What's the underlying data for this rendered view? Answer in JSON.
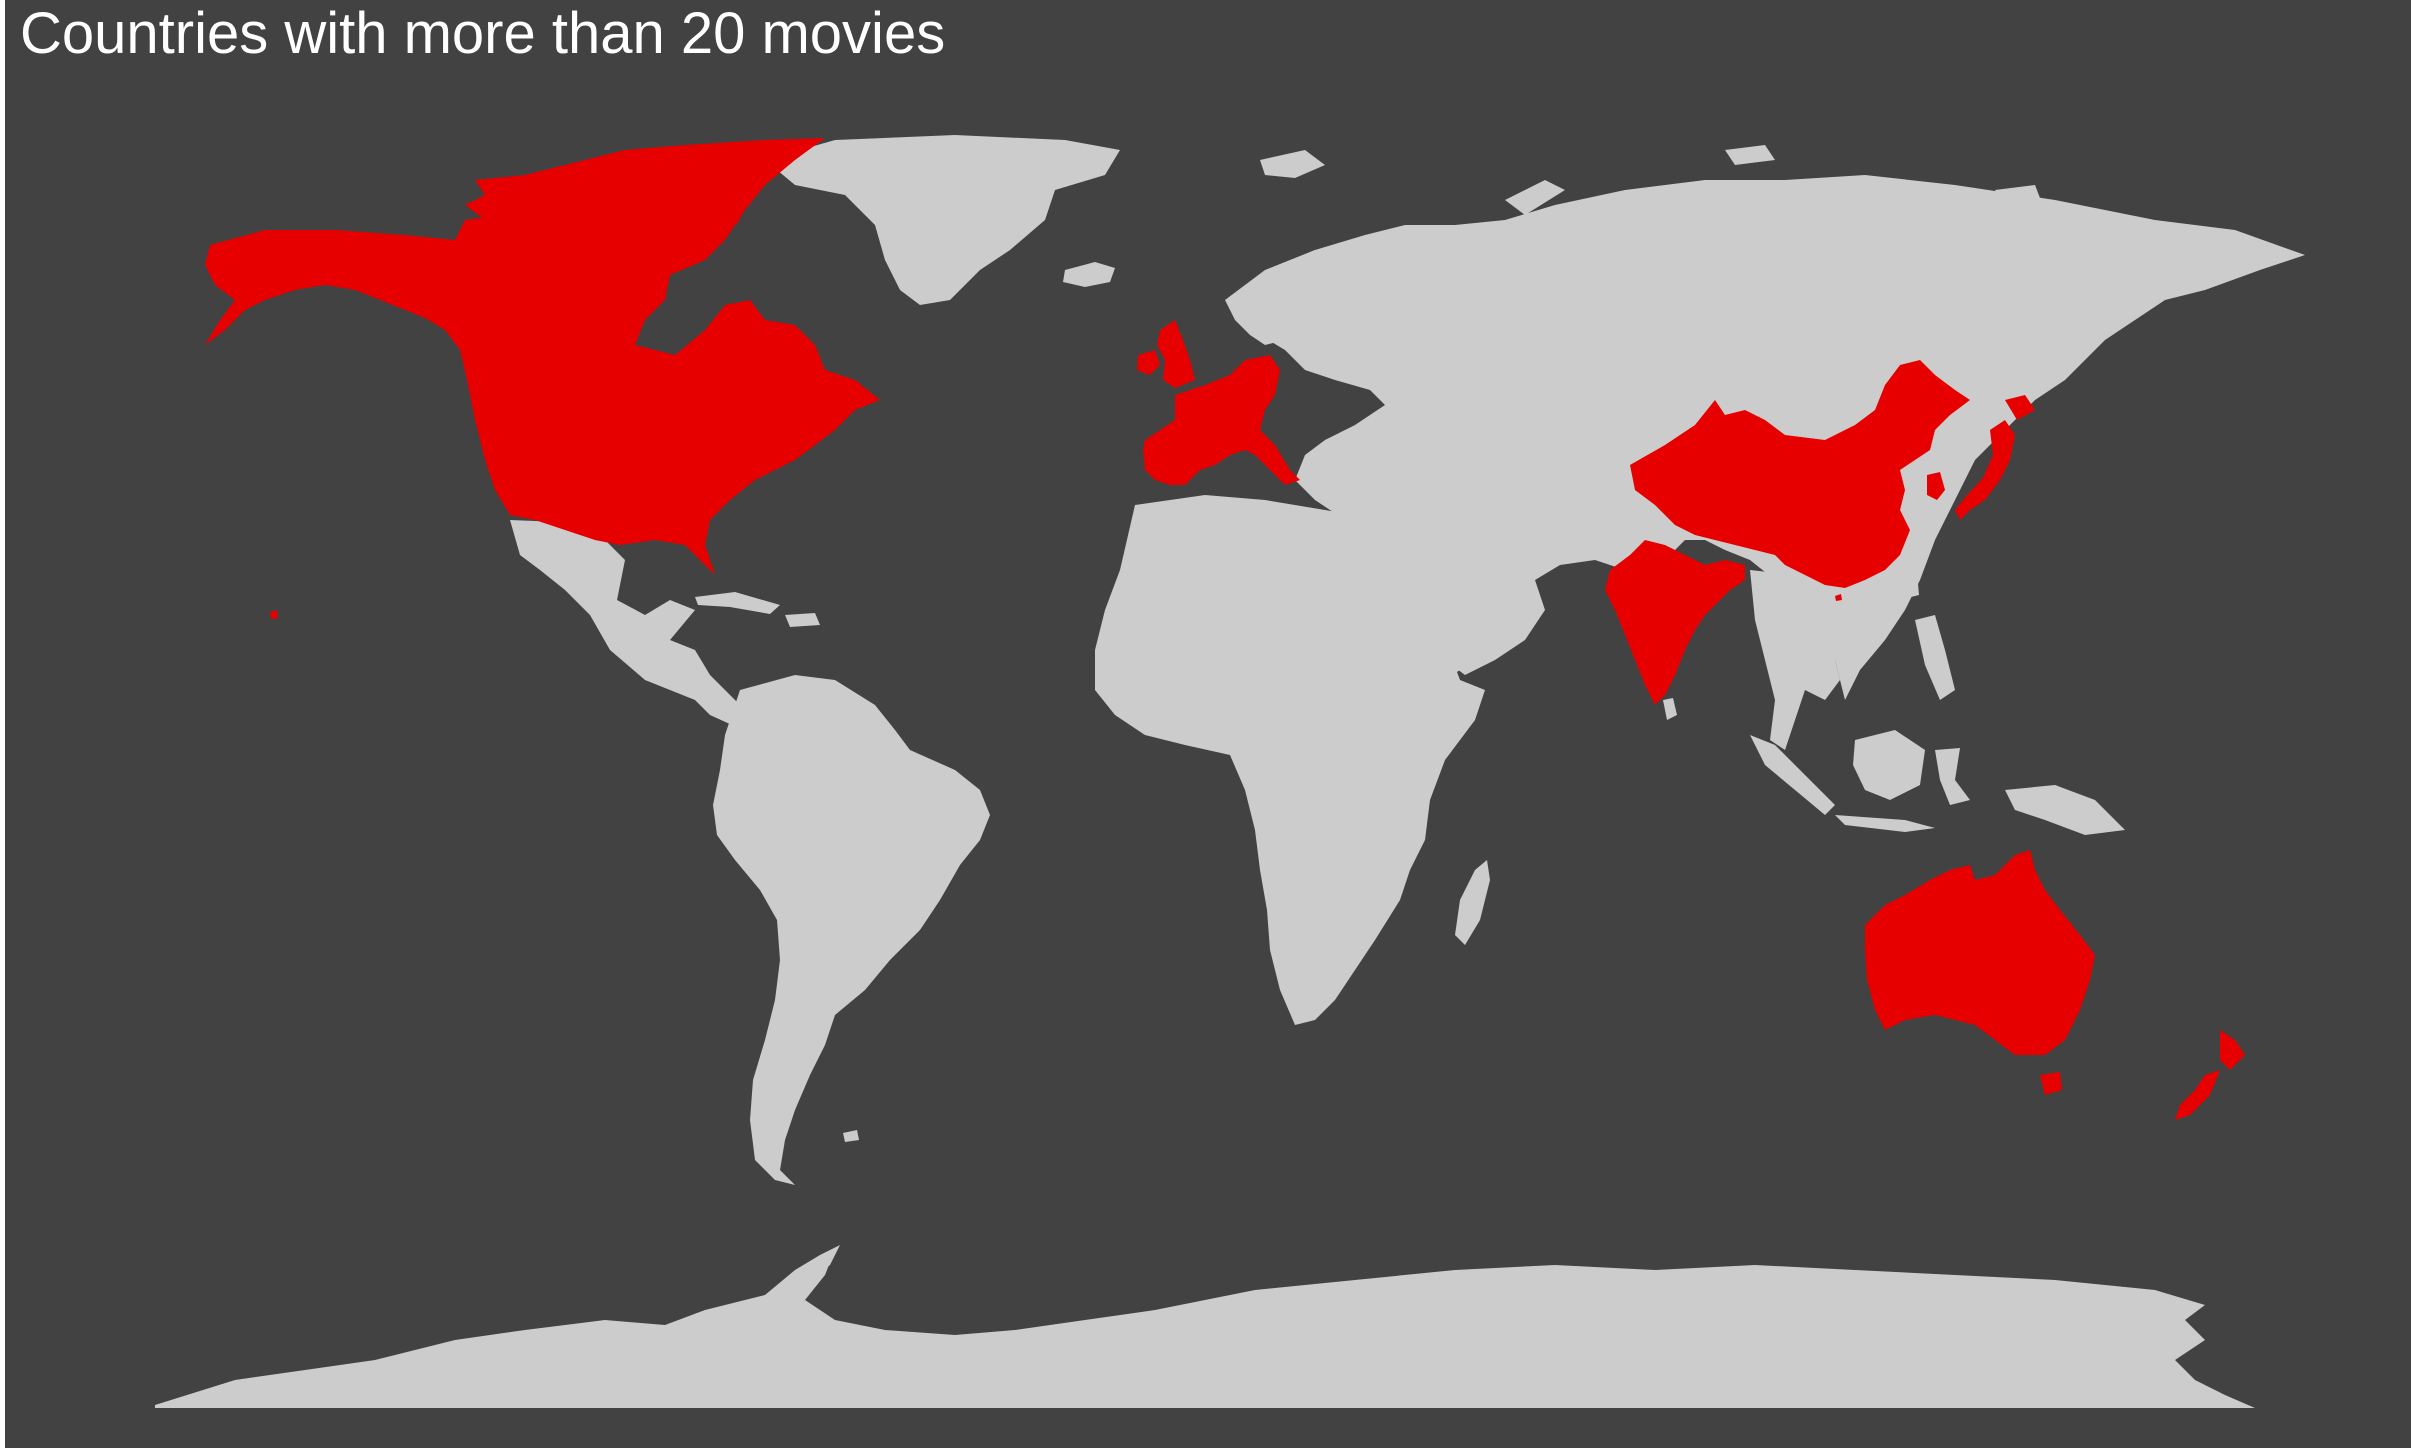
{
  "title": "Countries with more than 20 movies",
  "colors": {
    "background": "#424242",
    "land": "#cccccc",
    "highlight": "#e60000",
    "title": "#ffffff"
  },
  "highlighted_countries": [
    "Canada",
    "United States",
    "United Kingdom",
    "Ireland",
    "France",
    "Spain",
    "Germany",
    "Belgium",
    "Italy",
    "China",
    "India",
    "Japan",
    "South Korea",
    "Hong Kong",
    "Australia",
    "New Zealand"
  ]
}
